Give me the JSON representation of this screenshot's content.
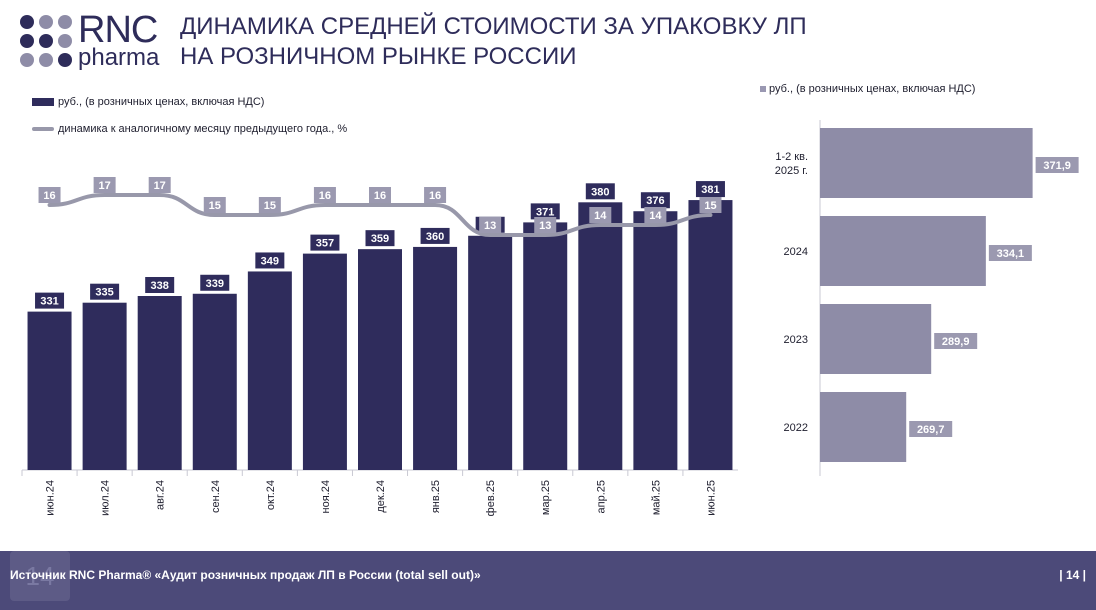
{
  "logo": {
    "brand": "RNC",
    "sub": "pharma"
  },
  "title": {
    "line1": "ДИНАМИКА СРЕДНЕЙ СТОИМОСТИ ЗА УПАКОВКУ ЛП",
    "line2": "НА РОЗНИЧНОМ РЫНКЕ РОССИИ"
  },
  "legend": {
    "bars": "руб., (в розничных ценах, включая НДС)",
    "line": "динамика к аналогичному месяцу предыдущего года., %",
    "right": "руб., (в розничных ценах, включая НДС)"
  },
  "footer": {
    "source": "Источник RNC Pharma® «Аудит розничных продаж ЛП в России (total sell out)»",
    "page": "| 14 |",
    "badge": "14"
  },
  "colors": {
    "bar": "#2f2c5c",
    "line": "#9898aa",
    "hbar": "#8e8ca7",
    "label_bg": "#2f2c5c",
    "line_label_bg": "#9b99b0",
    "footer": "#4c4a79"
  },
  "chart_data": [
    {
      "type": "bar",
      "categories": [
        "июн.24",
        "июл.24",
        "авг.24",
        "сен.24",
        "окт.24",
        "ноя.24",
        "дек.24",
        "янв.25",
        "фев.25",
        "мар.25",
        "апр.25",
        "май.25",
        "июн.25"
      ],
      "series": [
        {
          "name": "руб., (в розничных ценах, включая НДС)",
          "type": "bar",
          "values": [
            331,
            335,
            338,
            339,
            349,
            357,
            359,
            360,
            365,
            371,
            380,
            376,
            381
          ]
        },
        {
          "name": "динамика к аналогичному месяцу предыдущего года., %",
          "type": "line",
          "values": [
            16,
            17,
            17,
            15,
            15,
            16,
            16,
            16,
            13,
            13,
            14,
            14,
            15
          ]
        }
      ],
      "ylim": [
        260,
        390
      ],
      "line_ylim": [
        5,
        20
      ]
    },
    {
      "type": "bar",
      "orientation": "horizontal",
      "categories": [
        [
          "1-2 кв.",
          "2025 г."
        ],
        [
          "2024"
        ],
        [
          "2023"
        ],
        [
          "2022"
        ]
      ],
      "labels": [
        "371,9",
        "334,1",
        "289,9",
        "269,7"
      ],
      "values": [
        371.9,
        334.1,
        289.9,
        269.7
      ],
      "xlim": [
        200,
        390
      ]
    }
  ]
}
